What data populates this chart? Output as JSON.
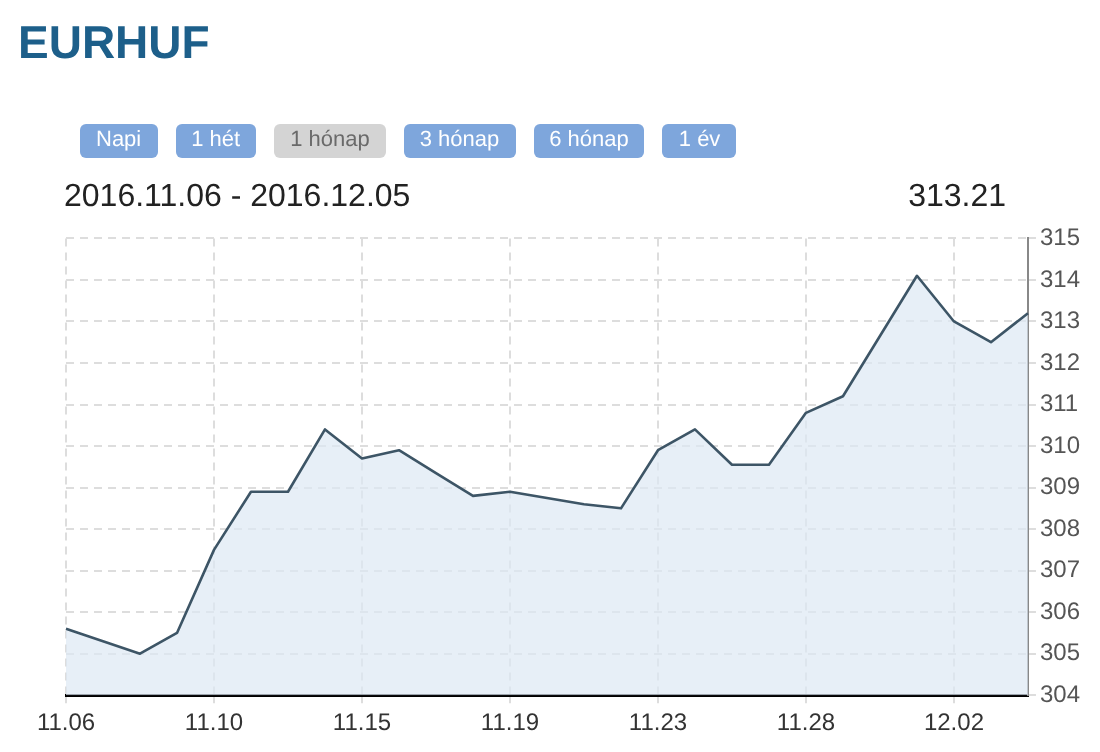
{
  "chart_data": {
    "type": "area",
    "title": "EURHUF",
    "subtitle": "2016.11.06 - 2016.12.05",
    "annotations": [
      "Napi",
      "1 hét",
      "1 hónap",
      "3 hónap",
      "6 hónap",
      "1 év",
      "313.21"
    ],
    "categories": [
      "11.06",
      null,
      null,
      null,
      "11.10",
      null,
      null,
      null,
      "11.15",
      null,
      null,
      null,
      "11.19",
      null,
      null,
      null,
      "11.23",
      null,
      null,
      null,
      "11.28",
      null,
      null,
      null,
      "12.02",
      null,
      null
    ],
    "series": [
      {
        "color": "#3d5566",
        "values": [
          305.6,
          305.3,
          305.0,
          305.5,
          307.5,
          308.9,
          308.9,
          310.4,
          309.7,
          309.9,
          309.35,
          308.8,
          308.9,
          308.75,
          308.6,
          308.5,
          309.9,
          310.4,
          309.55,
          309.55,
          310.8,
          311.2,
          312.65,
          314.1,
          313.0,
          312.5,
          313.2
        ]
      }
    ],
    "ylim": [
      304,
      315
    ],
    "yticks": [
      304,
      305,
      306,
      307,
      308,
      309,
      310,
      311,
      312,
      313,
      314,
      315
    ],
    "grid": true,
    "legend": false,
    "marker": "none",
    "line_style": "solid"
  }
}
